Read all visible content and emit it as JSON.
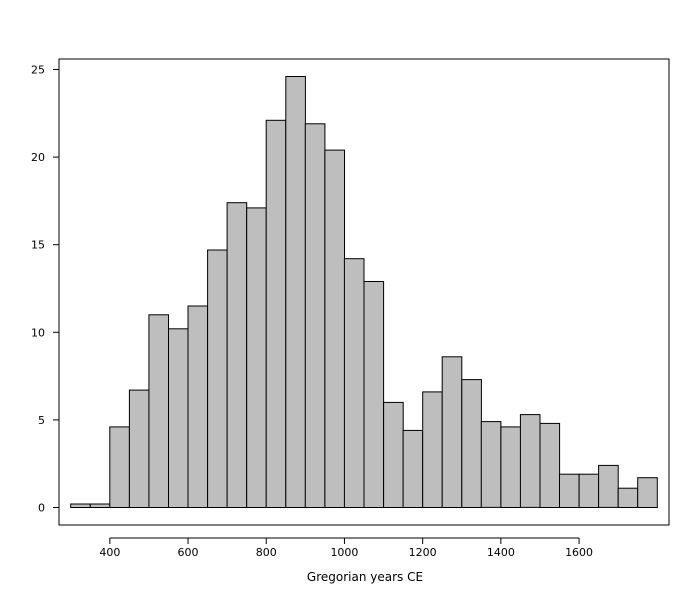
{
  "chart_data": {
    "type": "bar",
    "title": "",
    "xlabel": "Gregorian years CE",
    "ylabel": "",
    "bin_width": 50,
    "bins": [
      {
        "start": 300,
        "end": 350,
        "value": 0.2
      },
      {
        "start": 350,
        "end": 400,
        "value": 0.2
      },
      {
        "start": 400,
        "end": 450,
        "value": 4.6
      },
      {
        "start": 450,
        "end": 500,
        "value": 6.7
      },
      {
        "start": 500,
        "end": 550,
        "value": 11.0
      },
      {
        "start": 550,
        "end": 600,
        "value": 10.2
      },
      {
        "start": 600,
        "end": 650,
        "value": 11.5
      },
      {
        "start": 650,
        "end": 700,
        "value": 14.7
      },
      {
        "start": 700,
        "end": 750,
        "value": 17.4
      },
      {
        "start": 750,
        "end": 800,
        "value": 17.1
      },
      {
        "start": 800,
        "end": 850,
        "value": 22.1
      },
      {
        "start": 850,
        "end": 900,
        "value": 24.6
      },
      {
        "start": 900,
        "end": 950,
        "value": 21.9
      },
      {
        "start": 950,
        "end": 1000,
        "value": 20.4
      },
      {
        "start": 1000,
        "end": 1050,
        "value": 14.2
      },
      {
        "start": 1050,
        "end": 1100,
        "value": 12.9
      },
      {
        "start": 1100,
        "end": 1150,
        "value": 6.0
      },
      {
        "start": 1150,
        "end": 1200,
        "value": 4.4
      },
      {
        "start": 1200,
        "end": 1250,
        "value": 6.6
      },
      {
        "start": 1250,
        "end": 1300,
        "value": 8.6
      },
      {
        "start": 1300,
        "end": 1350,
        "value": 7.3
      },
      {
        "start": 1350,
        "end": 1400,
        "value": 4.9
      },
      {
        "start": 1400,
        "end": 1450,
        "value": 4.6
      },
      {
        "start": 1450,
        "end": 1500,
        "value": 5.3
      },
      {
        "start": 1500,
        "end": 1550,
        "value": 4.8
      },
      {
        "start": 1550,
        "end": 1600,
        "value": 1.9
      },
      {
        "start": 1600,
        "end": 1650,
        "value": 1.9
      },
      {
        "start": 1650,
        "end": 1700,
        "value": 2.4
      },
      {
        "start": 1700,
        "end": 1750,
        "value": 1.1
      },
      {
        "start": 1750,
        "end": 1800,
        "value": 1.7
      }
    ],
    "xticks": [
      400,
      600,
      800,
      1000,
      1200,
      1400,
      1600
    ],
    "yticks": [
      0,
      5,
      10,
      15,
      20,
      25
    ],
    "xlim": [
      270,
      1830
    ],
    "ylim": [
      -1,
      25.6
    ],
    "grid": false,
    "legend": "none",
    "colors": {
      "bar_fill": "#bebebe",
      "bar_stroke": "#000000"
    }
  }
}
